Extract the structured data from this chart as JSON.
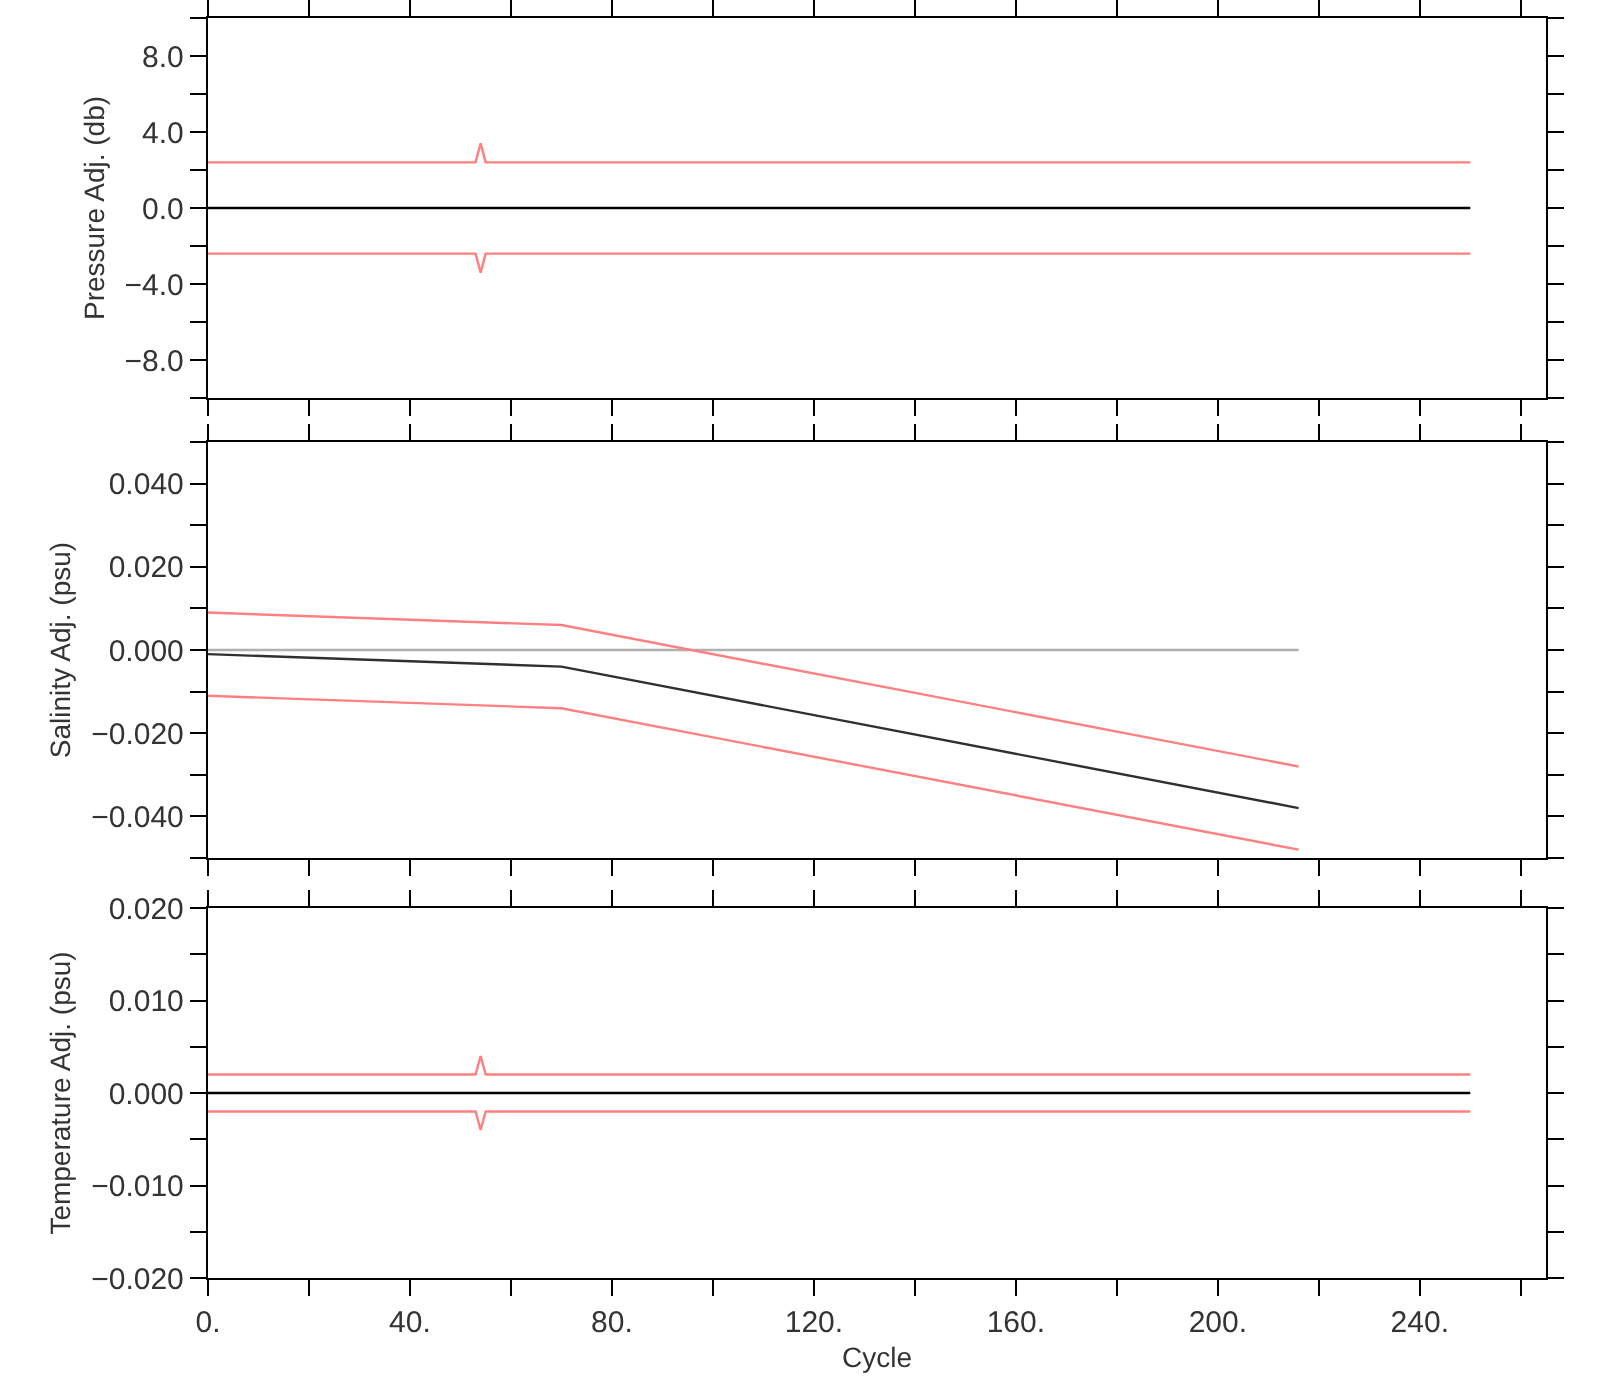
{
  "chart_data": [
    {
      "type": "line",
      "ylabel": "Pressure Adj. (db)",
      "tick_labels": "y",
      "xlim": [
        0,
        265
      ],
      "xticks": [
        {
          "value": 0,
          "label": null
        },
        {
          "value": 20,
          "label": null
        },
        {
          "value": 40,
          "label": null
        },
        {
          "value": 60,
          "label": null
        },
        {
          "value": 80,
          "label": null
        },
        {
          "value": 100,
          "label": null
        },
        {
          "value": 120,
          "label": null
        },
        {
          "value": 140,
          "label": null
        },
        {
          "value": 160,
          "label": null
        },
        {
          "value": 180,
          "label": null
        },
        {
          "value": 200,
          "label": null
        },
        {
          "value": 220,
          "label": null
        },
        {
          "value": 240,
          "label": null
        },
        {
          "value": 260,
          "label": null
        }
      ],
      "ylim": [
        -10,
        10
      ],
      "yticks": [
        {
          "value": -10,
          "label": null
        },
        {
          "value": -8,
          "label": "−8.0"
        },
        {
          "value": -6,
          "label": null
        },
        {
          "value": -4,
          "label": "−4.0"
        },
        {
          "value": -2,
          "label": null
        },
        {
          "value": 0,
          "label": "0.0"
        },
        {
          "value": 2,
          "label": null
        },
        {
          "value": 4,
          "label": "4.0"
        },
        {
          "value": 6,
          "label": null
        },
        {
          "value": 8,
          "label": "8.0"
        },
        {
          "value": 10,
          "label": null
        }
      ],
      "series": [
        {
          "color": "#ff8080",
          "x": [
            0,
            53,
            54,
            55,
            250
          ],
          "values": [
            2.4,
            2.4,
            3.4,
            2.4,
            2.4
          ]
        },
        {
          "color": "#ff8080",
          "x": [
            0,
            53,
            54,
            55,
            250
          ],
          "values": [
            -2.4,
            -2.4,
            -3.4,
            -2.4,
            -2.4
          ]
        },
        {
          "color": "#000000",
          "x": [
            0,
            250
          ],
          "values": [
            0,
            0
          ]
        }
      ]
    },
    {
      "type": "line",
      "ylabel": "Salinity Adj. (psu)",
      "tick_labels": "y",
      "xlim": [
        0,
        265
      ],
      "xticks": [
        {
          "value": 0,
          "label": null
        },
        {
          "value": 20,
          "label": null
        },
        {
          "value": 40,
          "label": null
        },
        {
          "value": 60,
          "label": null
        },
        {
          "value": 80,
          "label": null
        },
        {
          "value": 100,
          "label": null
        },
        {
          "value": 120,
          "label": null
        },
        {
          "value": 140,
          "label": null
        },
        {
          "value": 160,
          "label": null
        },
        {
          "value": 180,
          "label": null
        },
        {
          "value": 200,
          "label": null
        },
        {
          "value": 220,
          "label": null
        },
        {
          "value": 240,
          "label": null
        },
        {
          "value": 260,
          "label": null
        }
      ],
      "ylim": [
        -0.05,
        0.05
      ],
      "yticks": [
        {
          "value": -0.05,
          "label": null
        },
        {
          "value": -0.04,
          "label": "−0.040"
        },
        {
          "value": -0.03,
          "label": null
        },
        {
          "value": -0.02,
          "label": "−0.020"
        },
        {
          "value": -0.01,
          "label": null
        },
        {
          "value": 0,
          "label": "0.000"
        },
        {
          "value": 0.01,
          "label": null
        },
        {
          "value": 0.02,
          "label": "0.020"
        },
        {
          "value": 0.03,
          "label": null
        },
        {
          "value": 0.04,
          "label": "0.040"
        },
        {
          "value": 0.05,
          "label": null
        }
      ],
      "series": [
        {
          "color": "#b0b0b0",
          "x": [
            0,
            216
          ],
          "values": [
            0,
            0
          ]
        },
        {
          "color": "#ff8080",
          "x": [
            0,
            70,
            216
          ],
          "values": [
            0.009,
            0.006,
            -0.028
          ]
        },
        {
          "color": "#ff8080",
          "x": [
            0,
            70,
            216
          ],
          "values": [
            -0.011,
            -0.014,
            -0.048
          ]
        },
        {
          "color": "#303030",
          "x": [
            0,
            70,
            216
          ],
          "values": [
            -0.001,
            -0.004,
            -0.038
          ]
        }
      ]
    },
    {
      "type": "line",
      "ylabel": "Temperature Adj. (psu)",
      "xlabel": "Cycle",
      "xlim": [
        0,
        265
      ],
      "xticks": [
        {
          "value": 0,
          "label": "0."
        },
        {
          "value": 20,
          "label": null
        },
        {
          "value": 40,
          "label": "40."
        },
        {
          "value": 60,
          "label": null
        },
        {
          "value": 80,
          "label": "80."
        },
        {
          "value": 100,
          "label": null
        },
        {
          "value": 120,
          "label": "120."
        },
        {
          "value": 140,
          "label": null
        },
        {
          "value": 160,
          "label": "160."
        },
        {
          "value": 180,
          "label": null
        },
        {
          "value": 200,
          "label": "200."
        },
        {
          "value": 220,
          "label": null
        },
        {
          "value": 240,
          "label": "240."
        },
        {
          "value": 260,
          "label": null
        }
      ],
      "ylim": [
        -0.02,
        0.02
      ],
      "yticks": [
        {
          "value": -0.02,
          "label": "−0.020"
        },
        {
          "value": -0.015,
          "label": null
        },
        {
          "value": -0.01,
          "label": "−0.010"
        },
        {
          "value": -0.005,
          "label": null
        },
        {
          "value": 0,
          "label": "0.000"
        },
        {
          "value": 0.005,
          "label": null
        },
        {
          "value": 0.01,
          "label": "0.010"
        },
        {
          "value": 0.015,
          "label": null
        },
        {
          "value": 0.02,
          "label": "0.020"
        }
      ],
      "series": [
        {
          "color": "#ff8080",
          "x": [
            0,
            53,
            54,
            55,
            250
          ],
          "values": [
            0.002,
            0.002,
            0.004,
            0.002,
            0.002
          ]
        },
        {
          "color": "#ff8080",
          "x": [
            0,
            53,
            54,
            55,
            250
          ],
          "values": [
            -0.002,
            -0.002,
            -0.004,
            -0.002,
            -0.002
          ]
        },
        {
          "color": "#000000",
          "x": [
            0,
            250
          ],
          "values": [
            0,
            0
          ]
        }
      ]
    }
  ]
}
